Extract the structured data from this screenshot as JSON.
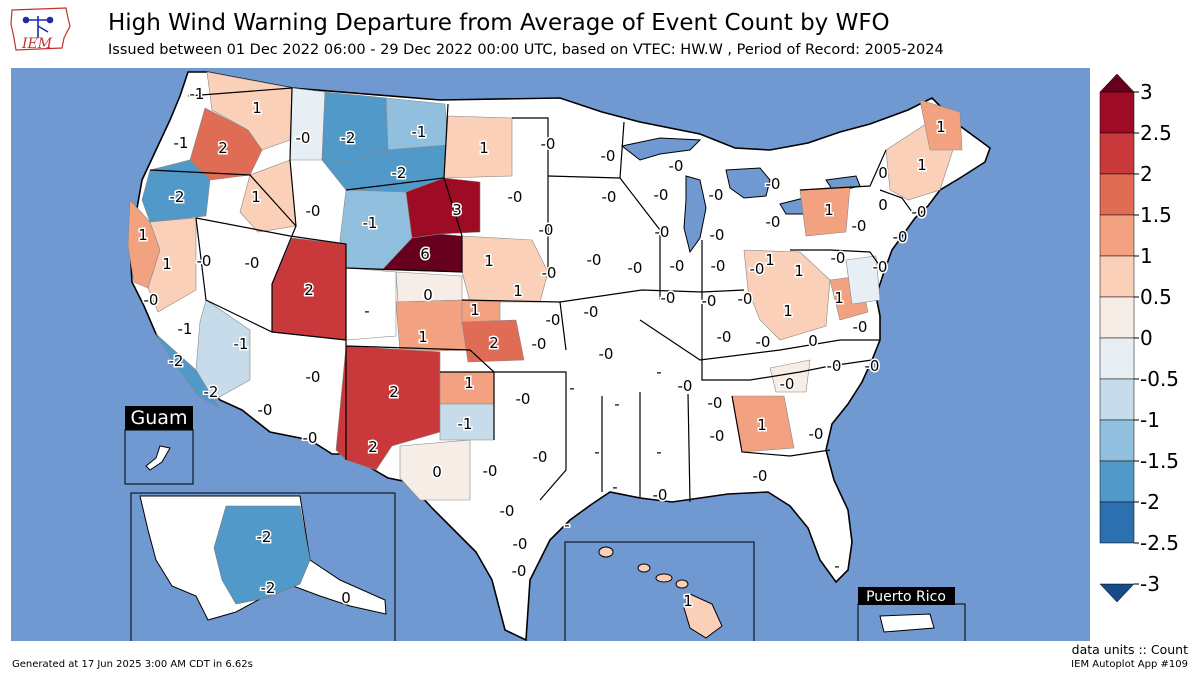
{
  "header": {
    "title": "High Wind Warning Departure from Average of Event Count by WFO",
    "subtitle": "Issued between 01 Dec 2022 06:00 - 29 Dec 2022 00:00 UTC, based on VTEC: HW.W  , Period of Record: 2005-2024"
  },
  "logo": {
    "text": "IEM",
    "icon": "iowa-state-outline-icon"
  },
  "colors": {
    "ocean": "#7199d1",
    "land_none": "#ffffff",
    "border": "#000000",
    "grid_line": "#9a9a9a"
  },
  "map": {
    "insets": {
      "guam": "Guam",
      "puerto_rico": "Puerto Rico"
    },
    "wfo_labels": [
      {
        "text": "-1",
        "pos": [
          197,
          94
        ]
      },
      {
        "text": "1",
        "pos": [
          257,
          108
        ]
      },
      {
        "text": "-0",
        "pos": [
          303,
          138
        ]
      },
      {
        "text": "-2",
        "pos": [
          348,
          138
        ]
      },
      {
        "text": "-1",
        "pos": [
          419,
          132
        ]
      },
      {
        "text": "1",
        "pos": [
          484,
          148
        ]
      },
      {
        "text": "-0",
        "pos": [
          548,
          144
        ]
      },
      {
        "text": "-0",
        "pos": [
          608,
          156
        ]
      },
      {
        "text": "-0",
        "pos": [
          676,
          166
        ]
      },
      {
        "text": "-1",
        "pos": [
          181,
          143
        ]
      },
      {
        "text": "2",
        "pos": [
          223,
          148
        ]
      },
      {
        "text": "-2",
        "pos": [
          399,
          173
        ]
      },
      {
        "text": "-2",
        "pos": [
          177,
          197
        ]
      },
      {
        "text": "1",
        "pos": [
          256,
          197
        ]
      },
      {
        "text": "-0",
        "pos": [
          313,
          211
        ]
      },
      {
        "text": "-1",
        "pos": [
          370,
          223
        ]
      },
      {
        "text": "3",
        "pos": [
          457,
          210
        ]
      },
      {
        "text": "-0",
        "pos": [
          515,
          197
        ]
      },
      {
        "text": "-0",
        "pos": [
          609,
          197
        ]
      },
      {
        "text": "-0",
        "pos": [
          661,
          195
        ]
      },
      {
        "text": "-0",
        "pos": [
          716,
          195
        ]
      },
      {
        "text": "-0",
        "pos": [
          773,
          184
        ]
      },
      {
        "text": "0",
        "pos": [
          883,
          173
        ]
      },
      {
        "text": "1",
        "pos": [
          922,
          165
        ]
      },
      {
        "text": "1",
        "pos": [
          941,
          127
        ]
      },
      {
        "text": "-0",
        "pos": [
          662,
          232
        ]
      },
      {
        "text": "-0",
        "pos": [
          717,
          235
        ]
      },
      {
        "text": "-0",
        "pos": [
          773,
          222
        ]
      },
      {
        "text": "1",
        "pos": [
          829,
          210
        ]
      },
      {
        "text": "0",
        "pos": [
          883,
          205
        ]
      },
      {
        "text": "-0",
        "pos": [
          919,
          212
        ]
      },
      {
        "text": "-0",
        "pos": [
          859,
          226
        ]
      },
      {
        "text": "-0",
        "pos": [
          900,
          237
        ]
      },
      {
        "text": "1",
        "pos": [
          143,
          235
        ]
      },
      {
        "text": "1",
        "pos": [
          167,
          264
        ]
      },
      {
        "text": "-0",
        "pos": [
          204,
          261
        ]
      },
      {
        "text": "-0",
        "pos": [
          252,
          263
        ]
      },
      {
        "text": "2",
        "pos": [
          309,
          290
        ]
      },
      {
        "text": "6",
        "pos": [
          425,
          254
        ]
      },
      {
        "text": "-0",
        "pos": [
          546,
          230
        ]
      },
      {
        "text": "1",
        "pos": [
          489,
          261
        ]
      },
      {
        "text": "-0",
        "pos": [
          549,
          273
        ]
      },
      {
        "text": "-0",
        "pos": [
          594,
          260
        ]
      },
      {
        "text": "-0",
        "pos": [
          635,
          268
        ]
      },
      {
        "text": "-0",
        "pos": [
          677,
          266
        ]
      },
      {
        "text": "-0",
        "pos": [
          718,
          266
        ]
      },
      {
        "text": "-0",
        "pos": [
          757,
          269
        ]
      },
      {
        "text": "1",
        "pos": [
          770,
          260
        ]
      },
      {
        "text": "1",
        "pos": [
          799,
          271
        ]
      },
      {
        "text": "-0",
        "pos": [
          838,
          258
        ]
      },
      {
        "text": "-0",
        "pos": [
          880,
          267
        ]
      },
      {
        "text": "-0",
        "pos": [
          151,
          300
        ]
      },
      {
        "text": "1",
        "pos": [
          518,
          291
        ]
      },
      {
        "text": "0",
        "pos": [
          428,
          295
        ]
      },
      {
        "text": "-0",
        "pos": [
          668,
          298
        ]
      },
      {
        "text": "-0",
        "pos": [
          709,
          301
        ]
      },
      {
        "text": "-0",
        "pos": [
          745,
          299
        ]
      },
      {
        "text": "1",
        "pos": [
          839,
          298
        ]
      },
      {
        "text": "-1",
        "pos": [
          185,
          329
        ]
      },
      {
        "text": "-",
        "pos": [
          367,
          311
        ]
      },
      {
        "text": "1",
        "pos": [
          475,
          310
        ]
      },
      {
        "text": "-0",
        "pos": [
          553,
          320
        ]
      },
      {
        "text": "-0",
        "pos": [
          591,
          312
        ]
      },
      {
        "text": "1",
        "pos": [
          788,
          311
        ]
      },
      {
        "text": "-0",
        "pos": [
          860,
          327
        ]
      },
      {
        "text": "-1",
        "pos": [
          241,
          344
        ]
      },
      {
        "text": "1",
        "pos": [
          423,
          337
        ]
      },
      {
        "text": "2",
        "pos": [
          494,
          343
        ]
      },
      {
        "text": "-0",
        "pos": [
          539,
          344
        ]
      },
      {
        "text": "-0",
        "pos": [
          606,
          354
        ]
      },
      {
        "text": "-0",
        "pos": [
          724,
          337
        ]
      },
      {
        "text": "-0",
        "pos": [
          763,
          342
        ]
      },
      {
        "text": "0",
        "pos": [
          813,
          341
        ]
      },
      {
        "text": "-2",
        "pos": [
          176,
          361
        ]
      },
      {
        "text": "-0",
        "pos": [
          313,
          377
        ]
      },
      {
        "text": "-0",
        "pos": [
          834,
          366
        ]
      },
      {
        "text": "-0",
        "pos": [
          872,
          366
        ]
      },
      {
        "text": "-2",
        "pos": [
          211,
          392
        ]
      },
      {
        "text": "2",
        "pos": [
          394,
          392
        ]
      },
      {
        "text": "1",
        "pos": [
          469,
          383
        ]
      },
      {
        "text": "-0",
        "pos": [
          523,
          399
        ]
      },
      {
        "text": "-",
        "pos": [
          572,
          388
        ]
      },
      {
        "text": "-0",
        "pos": [
          685,
          386
        ]
      },
      {
        "text": "-",
        "pos": [
          659,
          372
        ]
      },
      {
        "text": "-0",
        "pos": [
          787,
          384
        ]
      },
      {
        "text": "-0",
        "pos": [
          265,
          410
        ]
      },
      {
        "text": "-1",
        "pos": [
          465,
          424
        ]
      },
      {
        "text": "-0",
        "pos": [
          715,
          403
        ]
      },
      {
        "text": "-",
        "pos": [
          617,
          404
        ]
      },
      {
        "text": "-0",
        "pos": [
          310,
          438
        ]
      },
      {
        "text": "2",
        "pos": [
          373,
          447
        ]
      },
      {
        "text": "-0",
        "pos": [
          540,
          457
        ]
      },
      {
        "text": "-0",
        "pos": [
          717,
          436
        ]
      },
      {
        "text": "1",
        "pos": [
          762,
          425
        ]
      },
      {
        "text": "-0",
        "pos": [
          816,
          434
        ]
      },
      {
        "text": "-",
        "pos": [
          659,
          452
        ]
      },
      {
        "text": "0",
        "pos": [
          437,
          472
        ]
      },
      {
        "text": "-0",
        "pos": [
          490,
          471
        ]
      },
      {
        "text": "-0",
        "pos": [
          760,
          476
        ]
      },
      {
        "text": "-",
        "pos": [
          597,
          452
        ]
      },
      {
        "text": "-",
        "pos": [
          615,
          487
        ]
      },
      {
        "text": "-0",
        "pos": [
          660,
          495
        ]
      },
      {
        "text": "-0",
        "pos": [
          507,
          511
        ]
      },
      {
        "text": "-",
        "pos": [
          567,
          525
        ]
      },
      {
        "text": "-0",
        "pos": [
          520,
          544
        ]
      },
      {
        "text": "-0",
        "pos": [
          519,
          571
        ]
      },
      {
        "text": "-",
        "pos": [
          837,
          566
        ]
      },
      {
        "text": "-2",
        "pos": [
          264,
          537
        ]
      },
      {
        "text": "-2",
        "pos": [
          268,
          588
        ]
      },
      {
        "text": "0",
        "pos": [
          346,
          598
        ]
      },
      {
        "text": "1",
        "pos": [
          688,
          601
        ]
      }
    ]
  },
  "colorbar": {
    "ticks": [
      "3",
      "2.5",
      "2",
      "1.5",
      "1",
      "0.5",
      "0",
      "-0.5",
      "-1",
      "-1.5",
      "-2",
      "-2.5",
      "-3"
    ],
    "bins": [
      "#67001f",
      "#9e0b25",
      "#c9383a",
      "#e06c55",
      "#f3a281",
      "#fbd0b9",
      "#f7ede7",
      "#e8eff4",
      "#c6dcea",
      "#90c0dd",
      "#5099c8",
      "#2c70b0",
      "#174a87"
    ]
  },
  "footer": {
    "units": "data units :: Count",
    "generated": "Generated at 17 Jun 2025 3:00 AM CDT in 6.62s",
    "app": "IEM Autoplot App #109"
  }
}
